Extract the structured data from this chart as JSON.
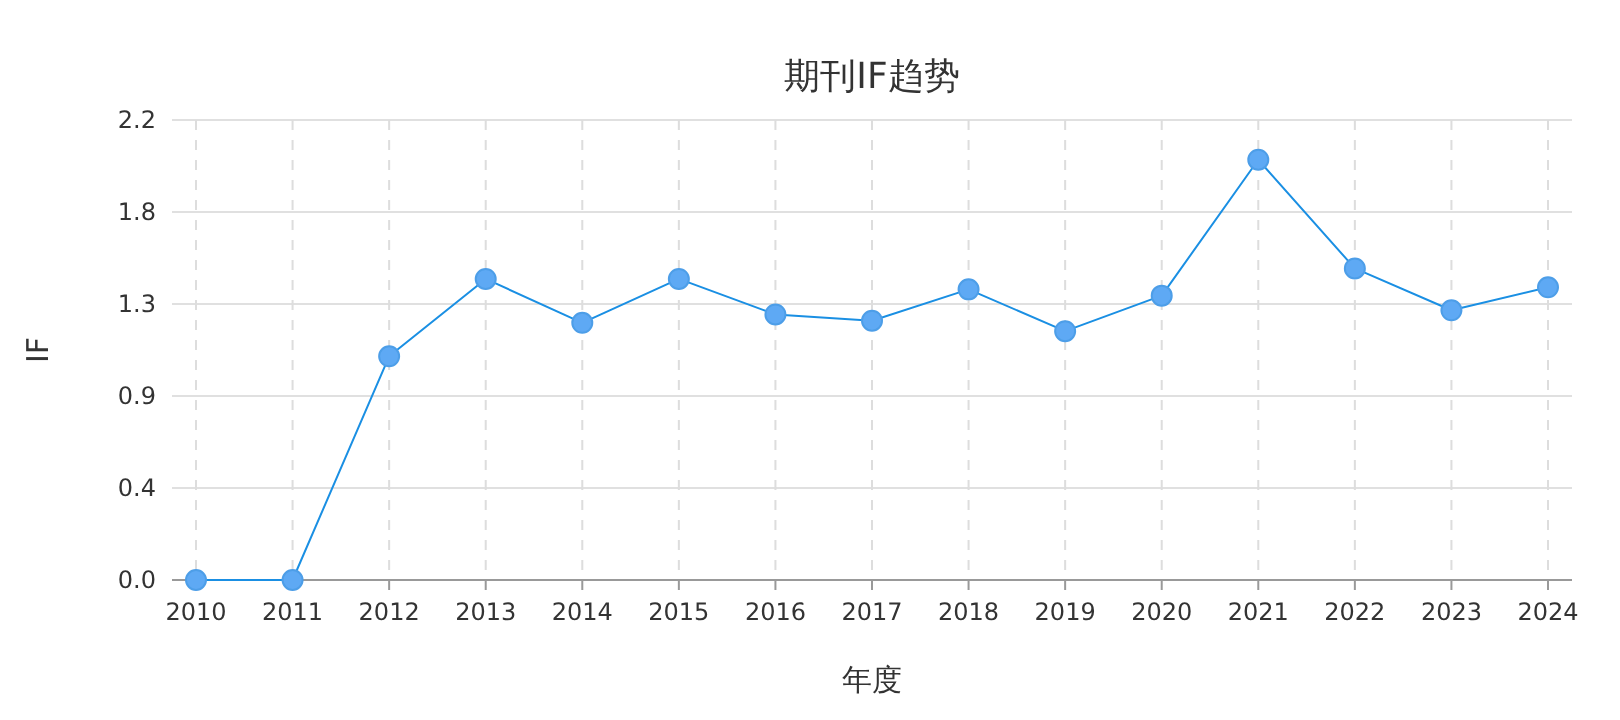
{
  "chart_data": {
    "type": "line",
    "title": "期刊IF趋势",
    "xlabel": "年度",
    "ylabel": "IF",
    "categories": [
      "2010",
      "2011",
      "2012",
      "2013",
      "2014",
      "2015",
      "2016",
      "2017",
      "2018",
      "2019",
      "2020",
      "2021",
      "2022",
      "2023",
      "2024"
    ],
    "series": [
      {
        "color": "#1a8fe3",
        "values": [
          0,
          0,
          1.07,
          1.44,
          1.23,
          1.44,
          1.27,
          1.24,
          1.39,
          1.19,
          1.36,
          2.01,
          1.49,
          1.29,
          1.4
        ]
      }
    ],
    "ylim": [
      0,
      2.2
    ],
    "yticks": [
      {
        "value": 0,
        "label": "0.0"
      },
      {
        "value": 0.44,
        "label": "0.4"
      },
      {
        "value": 0.88,
        "label": "0.9"
      },
      {
        "value": 1.32,
        "label": "1.3"
      },
      {
        "value": 1.76,
        "label": "1.8"
      },
      {
        "value": 2.2,
        "label": "2.2"
      }
    ],
    "grid": true,
    "marker": "circle",
    "line_style": "solid"
  }
}
